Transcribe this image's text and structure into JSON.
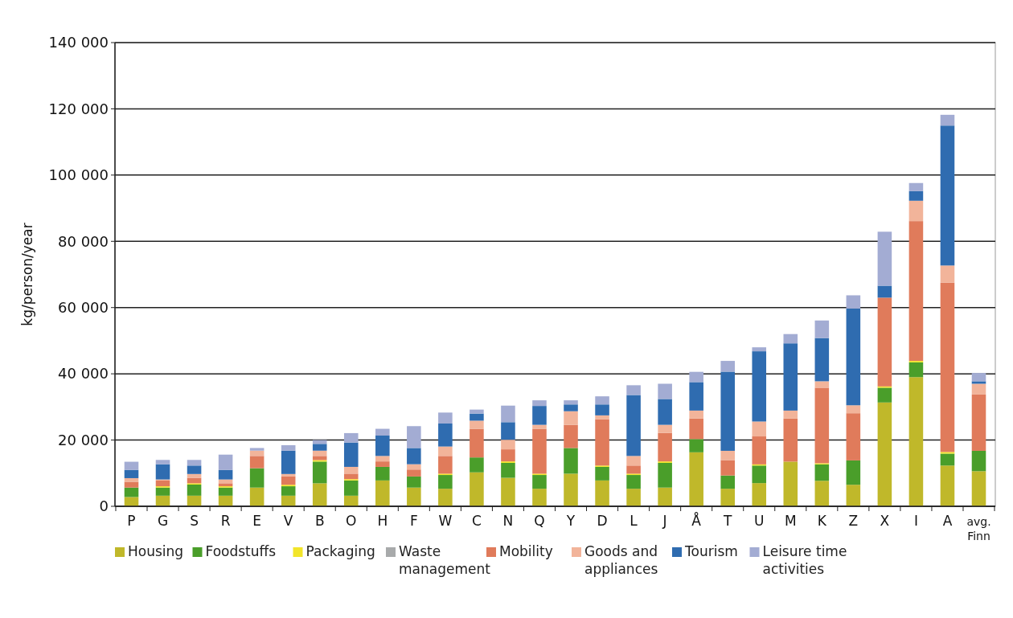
{
  "chart_data": {
    "type": "bar",
    "stacked": true,
    "ylabel": "kg/person/year",
    "categories": [
      "P",
      "G",
      "S",
      "R",
      "E",
      "V",
      "B",
      "O",
      "H",
      "F",
      "W",
      "C",
      "N",
      "Q",
      "Y",
      "D",
      "L",
      "J",
      "Å",
      "T",
      "U",
      "M",
      "K",
      "Z",
      "X",
      "I",
      "A",
      "avg. Finn"
    ],
    "series": [
      {
        "name": "Housing",
        "color": "#c0b82a",
        "values": [
          2800,
          3200,
          3200,
          3200,
          5650,
          3200,
          6950,
          3200,
          7800,
          5650,
          5300,
          10250,
          8600,
          5300,
          9850,
          7800,
          5300,
          5650,
          16300,
          5300,
          7000,
          13500,
          7700,
          6500,
          31350,
          39000,
          12300,
          10600
        ]
      },
      {
        "name": "Foodstuffs",
        "color": "#4a9e2a",
        "values": [
          2850,
          2450,
          3350,
          2450,
          5850,
          2850,
          6550,
          4600,
          4100,
          3350,
          4150,
          4500,
          4500,
          4150,
          7750,
          4100,
          4150,
          7450,
          4000,
          4000,
          5300,
          0,
          4950,
          7350,
          4450,
          4450,
          3600,
          6150
        ]
      },
      {
        "name": "Packaging",
        "color": "#f2e52a",
        "values": [
          0,
          400,
          400,
          400,
          0,
          450,
          450,
          400,
          0,
          0,
          400,
          0,
          450,
          400,
          0,
          400,
          400,
          450,
          0,
          0,
          350,
          0,
          350,
          0,
          400,
          450,
          500,
          0
        ]
      },
      {
        "name": "Waste management",
        "color": "#a8aaab",
        "values": [
          0,
          0,
          0,
          0,
          0,
          0,
          0,
          0,
          0,
          0,
          0,
          0,
          0,
          0,
          0,
          0,
          0,
          0,
          0,
          0,
          0,
          0,
          0,
          0,
          0,
          0,
          0,
          0
        ]
      },
      {
        "name": "Mobility",
        "color": "#e07b5b",
        "values": [
          1750,
          1750,
          1650,
          900,
          3700,
          2500,
          1250,
          1650,
          1650,
          2100,
          5350,
          8650,
          3650,
          13550,
          7000,
          13950,
          2450,
          8600,
          6200,
          4650,
          8450,
          13000,
          22800,
          14250,
          26800,
          42200,
          51100,
          17000
        ]
      },
      {
        "name": "Goods and appliances",
        "color": "#f2b49a",
        "values": [
          1100,
          300,
          1150,
          1150,
          1600,
          750,
          1600,
          2050,
          1650,
          1600,
          2850,
          2450,
          2900,
          1200,
          4100,
          1200,
          2900,
          2450,
          2400,
          2800,
          4500,
          2400,
          1950,
          2400,
          0,
          6150,
          5200,
          3250
        ]
      },
      {
        "name": "Tourism",
        "color": "#2f6cb0",
        "values": [
          2500,
          4600,
          2550,
          2900,
          0,
          7050,
          2050,
          7350,
          6150,
          4900,
          6950,
          2150,
          5300,
          5700,
          2050,
          3300,
          18400,
          7800,
          8600,
          23900,
          21200,
          20300,
          13050,
          29200,
          3600,
          2900,
          42250,
          750
        ]
      },
      {
        "name": "Leisure time activities",
        "color": "#a3acd3",
        "values": [
          2450,
          1300,
          1700,
          4600,
          800,
          1650,
          1150,
          2850,
          2050,
          6600,
          3300,
          1200,
          5000,
          1700,
          1250,
          2450,
          2950,
          4600,
          3100,
          3250,
          1200,
          2800,
          5300,
          4000,
          16300,
          2450,
          3250,
          2500
        ]
      }
    ],
    "ylim": [
      0,
      140000
    ],
    "yticks": [
      {
        "value": 0,
        "label": "0"
      },
      {
        "value": 20000,
        "label": "20 000"
      },
      {
        "value": 40000,
        "label": "40 000"
      },
      {
        "value": 60000,
        "label": "60 000"
      },
      {
        "value": 80000,
        "label": "80 000"
      },
      {
        "value": 100000,
        "label": "100 000"
      },
      {
        "value": 120000,
        "label": "120 000"
      },
      {
        "value": 140000,
        "label": "140 000"
      }
    ],
    "grid": "y",
    "legend": "bottom"
  }
}
